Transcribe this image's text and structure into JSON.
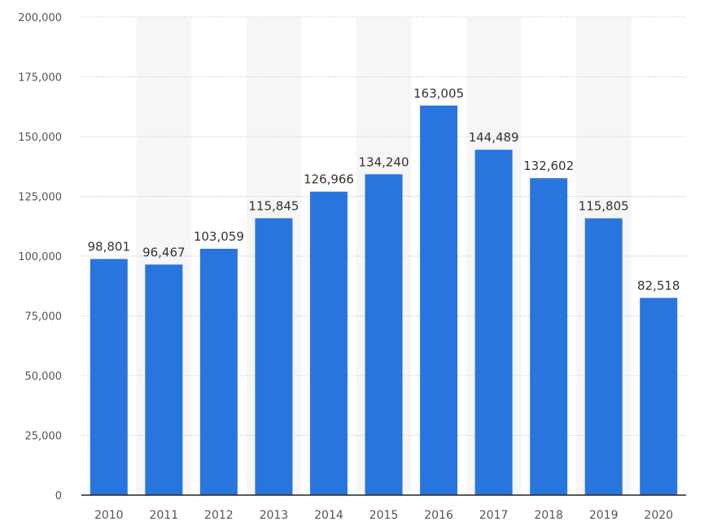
{
  "chart_data": {
    "type": "bar",
    "categories": [
      "2010",
      "2011",
      "2012",
      "2013",
      "2014",
      "2015",
      "2016",
      "2017",
      "2018",
      "2019",
      "2020"
    ],
    "values": [
      98801,
      96467,
      103059,
      115845,
      126966,
      134240,
      163005,
      144489,
      132602,
      115805,
      82518
    ],
    "value_labels": [
      "98,801",
      "96,467",
      "103,059",
      "115,845",
      "126,966",
      "134,240",
      "163,005",
      "144,489",
      "132,602",
      "115,805",
      "82,518"
    ],
    "y_ticks": [
      0,
      25000,
      50000,
      75000,
      100000,
      125000,
      150000,
      175000,
      200000
    ],
    "y_tick_labels": [
      "0",
      "25,000",
      "50,000",
      "75,000",
      "100,000",
      "125,000",
      "150,000",
      "175,000",
      "200,000"
    ],
    "ylim": [
      0,
      200000
    ],
    "grid": true,
    "bar_color": "#2876dd",
    "band_color": "#f6f6f6"
  }
}
